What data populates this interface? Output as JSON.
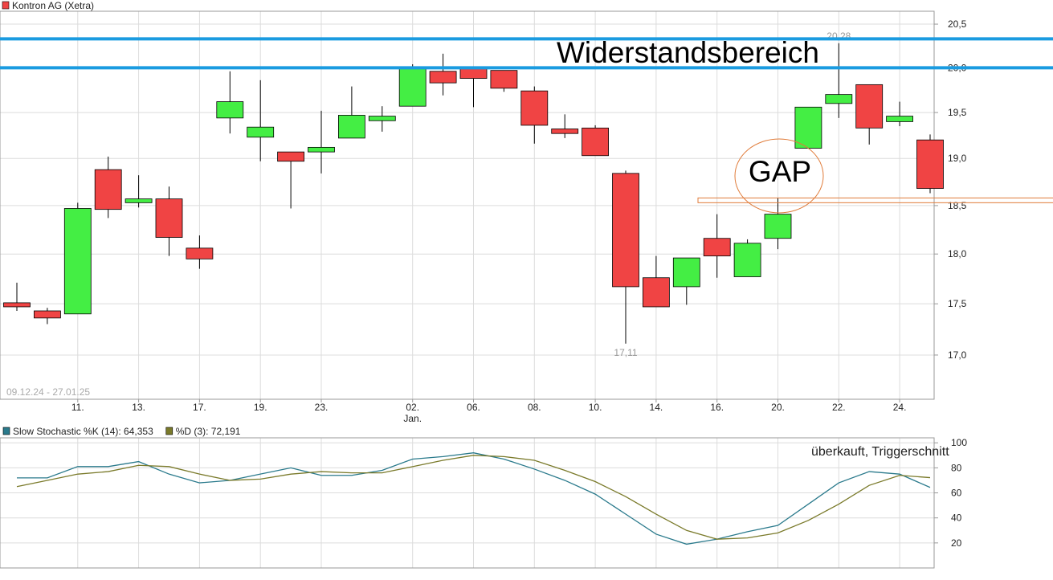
{
  "chart_data": [
    {
      "type": "candlestick",
      "series_name": "Kontron AG (Xetra)",
      "categories": [
        null,
        null,
        "11.",
        null,
        "13.",
        null,
        "17.",
        null,
        "19.",
        null,
        "23.",
        null,
        null,
        "02.",
        null,
        "06.",
        null,
        "08.",
        null,
        "10.",
        null,
        "14.",
        null,
        "16.",
        null,
        "20.",
        null,
        "22.",
        null,
        "24.",
        null
      ],
      "categories_sub": [
        null,
        null,
        null,
        null,
        null,
        null,
        null,
        null,
        null,
        null,
        null,
        null,
        null,
        "Jan.",
        null,
        null,
        null,
        null,
        null,
        null,
        null,
        null,
        null,
        null,
        null,
        null,
        null,
        null,
        null,
        null,
        null
      ],
      "open": [
        17.51,
        17.43,
        17.4,
        18.88,
        18.53,
        18.57,
        18.06,
        19.44,
        19.23,
        19.07,
        19.07,
        19.22,
        19.41,
        19.57,
        19.96,
        20.0,
        19.97,
        19.74,
        19.32,
        19.33,
        18.84,
        17.76,
        17.67,
        18.16,
        17.77,
        18.16,
        19.11,
        19.6,
        19.81,
        19.4,
        19.2
      ],
      "high": [
        17.71,
        17.46,
        18.53,
        19.02,
        18.82,
        18.7,
        18.19,
        19.96,
        19.86,
        19.07,
        19.52,
        19.79,
        19.57,
        20.04,
        20.16,
        20.0,
        19.97,
        19.79,
        19.48,
        19.36,
        18.87,
        17.98,
        17.96,
        18.41,
        18.15,
        18.58,
        19.56,
        20.28,
        19.81,
        19.62,
        19.26
      ],
      "low": [
        17.43,
        17.3,
        17.4,
        18.37,
        18.48,
        17.98,
        17.85,
        19.27,
        18.97,
        18.47,
        18.84,
        19.22,
        19.29,
        19.57,
        19.69,
        19.56,
        19.73,
        19.16,
        19.22,
        19.03,
        17.11,
        17.47,
        17.49,
        17.76,
        17.77,
        18.05,
        19.11,
        19.44,
        19.15,
        19.35,
        18.63
      ],
      "close": [
        17.47,
        17.36,
        18.47,
        18.46,
        18.57,
        18.17,
        17.95,
        19.62,
        19.34,
        18.97,
        19.12,
        19.47,
        19.46,
        20.0,
        19.83,
        19.88,
        19.77,
        19.36,
        19.27,
        19.03,
        17.67,
        17.47,
        17.96,
        17.98,
        18.11,
        18.41,
        19.56,
        19.7,
        19.33,
        19.46,
        18.68
      ],
      "value_labels_high": [
        null,
        null,
        null,
        null,
        null,
        null,
        null,
        null,
        null,
        null,
        null,
        null,
        null,
        null,
        null,
        null,
        null,
        null,
        null,
        null,
        null,
        null,
        null,
        null,
        null,
        null,
        null,
        "20,28",
        null,
        null,
        null
      ],
      "value_labels_low": [
        null,
        null,
        null,
        null,
        null,
        null,
        null,
        null,
        null,
        null,
        null,
        null,
        null,
        null,
        null,
        null,
        null,
        null,
        null,
        null,
        "17,11",
        null,
        null,
        null,
        null,
        null,
        null,
        null,
        null,
        null,
        null
      ],
      "up_color": "#44ee44",
      "down_color": "#f04444",
      "log_scale": true,
      "ylim": [
        16.58,
        20.65
      ],
      "yticks": [
        {
          "value": 17.0,
          "label": "17,0"
        },
        {
          "value": 17.5,
          "label": "17,5"
        },
        {
          "value": 18.0,
          "label": "18,0"
        },
        {
          "value": 18.5,
          "label": "18,5"
        },
        {
          "value": 19.0,
          "label": "19,0"
        },
        {
          "value": 19.5,
          "label": "19,5"
        },
        {
          "value": 20.0,
          "label": "20,0"
        },
        {
          "value": 20.5,
          "label": "20,5"
        }
      ],
      "grid": true,
      "date_range": "09.12.24 - 27.01.25",
      "resistance_lines": [
        20.33,
        20.0
      ],
      "resistance_color": "#1a9be0",
      "resistance_label": "Widerstandsbereich",
      "gap_zone": [
        18.53,
        18.58
      ],
      "gap_color": "#e07b39",
      "gap_label": "GAP"
    },
    {
      "type": "line",
      "series": [
        {
          "name": "Slow Stochastic %K (14): 64,353",
          "color": "#2a7a8c",
          "values": [
            72,
            72,
            81,
            81,
            85,
            75,
            68,
            70,
            75,
            80,
            74,
            74,
            78,
            87,
            89,
            92,
            87,
            79,
            70,
            59,
            43,
            27,
            19,
            23,
            29,
            34,
            51,
            68,
            77,
            75,
            64.353
          ]
        },
        {
          "name": "%D (3): 72,191",
          "color": "#7a7a2a",
          "values": [
            65,
            70,
            75,
            77,
            82,
            81,
            75,
            70,
            71,
            75,
            77,
            76,
            76,
            81,
            86,
            90,
            89,
            86,
            78,
            69,
            57,
            43,
            30,
            23,
            24,
            28,
            38,
            51,
            66,
            74,
            72.191
          ]
        }
      ],
      "ylim": [
        0,
        104
      ],
      "yticks": [
        20,
        40,
        60,
        80,
        100
      ],
      "grid": true,
      "annotation": "überkauft, Triggerschnitt"
    }
  ]
}
